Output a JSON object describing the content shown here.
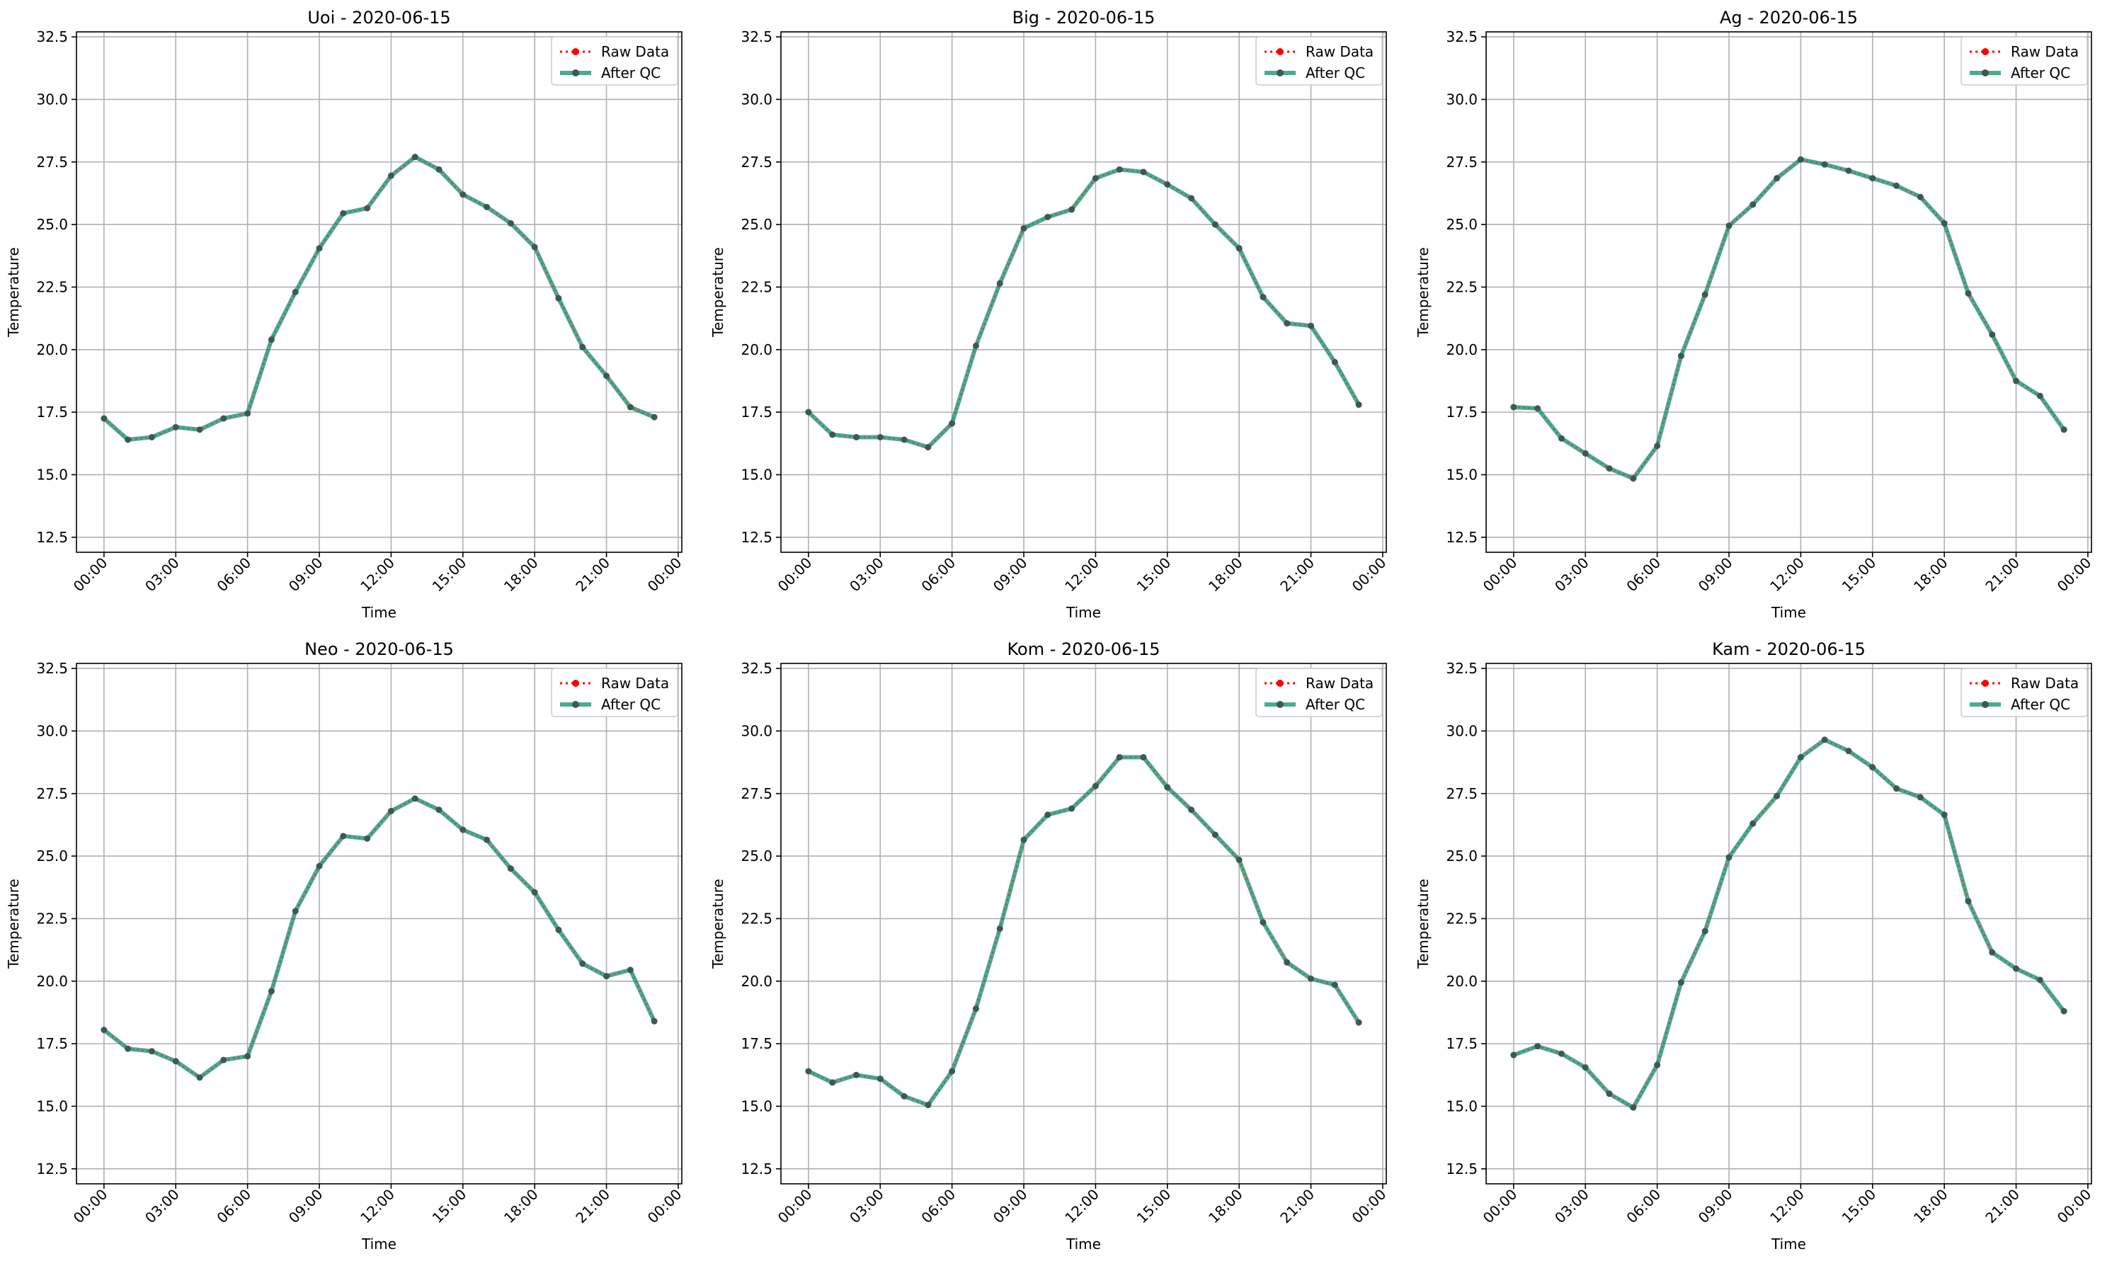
{
  "figure": {
    "legend": {
      "raw_label": "Raw Data",
      "qc_label": "After QC"
    },
    "colors": {
      "raw": "#ff0000",
      "qc": "#2a9d78",
      "grid": "#b0b0b0",
      "marker": "#3d5a50"
    }
  },
  "chart_data": [
    {
      "type": "line",
      "title": "Uoi - 2020-06-15",
      "xlabel": "Time",
      "ylabel": "Temperature",
      "x_ticks": [
        "00:00",
        "03:00",
        "06:00",
        "09:00",
        "12:00",
        "15:00",
        "18:00",
        "21:00",
        "00:00"
      ],
      "y_ticks": [
        "12.5",
        "15.0",
        "17.5",
        "20.0",
        "22.5",
        "25.0",
        "27.5",
        "30.0",
        "32.5"
      ],
      "ylim": [
        11.9,
        32.7
      ],
      "xlim_hours": [
        -1.15,
        24.15
      ],
      "grid": true,
      "legend_position": "top-right",
      "x_hours": [
        0,
        1,
        2,
        3,
        4,
        5,
        6,
        7,
        8,
        9,
        10,
        11,
        12,
        13,
        14,
        15,
        16,
        17,
        18,
        19,
        20,
        21,
        22,
        23
      ],
      "series": [
        {
          "name": "Raw Data",
          "values": [
            17.25,
            16.4,
            16.5,
            16.9,
            16.8,
            17.25,
            17.45,
            20.4,
            22.3,
            24.05,
            25.45,
            25.65,
            26.95,
            27.7,
            27.2,
            26.2,
            25.7,
            25.05,
            24.1,
            22.05,
            20.1,
            18.95,
            17.7,
            17.3
          ]
        },
        {
          "name": "After QC",
          "values": [
            17.25,
            16.4,
            16.5,
            16.9,
            16.8,
            17.25,
            17.45,
            20.4,
            22.3,
            24.05,
            25.45,
            25.65,
            26.95,
            27.7,
            27.2,
            26.2,
            25.7,
            25.05,
            24.1,
            22.05,
            20.1,
            18.95,
            17.7,
            17.3
          ]
        }
      ]
    },
    {
      "type": "line",
      "title": "Big - 2020-06-15",
      "xlabel": "Time",
      "ylabel": "Temperature",
      "x_ticks": [
        "00:00",
        "03:00",
        "06:00",
        "09:00",
        "12:00",
        "15:00",
        "18:00",
        "21:00",
        "00:00"
      ],
      "y_ticks": [
        "12.5",
        "15.0",
        "17.5",
        "20.0",
        "22.5",
        "25.0",
        "27.5",
        "30.0",
        "32.5"
      ],
      "ylim": [
        11.9,
        32.7
      ],
      "xlim_hours": [
        -1.15,
        24.15
      ],
      "grid": true,
      "legend_position": "top-right",
      "x_hours": [
        0,
        1,
        2,
        3,
        4,
        5,
        6,
        7,
        8,
        9,
        10,
        11,
        12,
        13,
        14,
        15,
        16,
        17,
        18,
        19,
        20,
        21,
        22,
        23
      ],
      "series": [
        {
          "name": "Raw Data",
          "values": [
            17.5,
            16.6,
            16.5,
            16.5,
            16.4,
            16.1,
            17.05,
            20.15,
            22.65,
            24.85,
            25.3,
            25.6,
            26.85,
            27.2,
            27.1,
            26.6,
            26.05,
            25.0,
            24.05,
            22.1,
            21.05,
            20.95,
            19.5,
            17.8
          ]
        },
        {
          "name": "After QC",
          "values": [
            17.5,
            16.6,
            16.5,
            16.5,
            16.4,
            16.1,
            17.05,
            20.15,
            22.65,
            24.85,
            25.3,
            25.6,
            26.85,
            27.2,
            27.1,
            26.6,
            26.05,
            25.0,
            24.05,
            22.1,
            21.05,
            20.95,
            19.5,
            17.8
          ]
        }
      ]
    },
    {
      "type": "line",
      "title": "Ag - 2020-06-15",
      "xlabel": "Time",
      "ylabel": "Temperature",
      "x_ticks": [
        "00:00",
        "03:00",
        "06:00",
        "09:00",
        "12:00",
        "15:00",
        "18:00",
        "21:00",
        "00:00"
      ],
      "y_ticks": [
        "12.5",
        "15.0",
        "17.5",
        "20.0",
        "22.5",
        "25.0",
        "27.5",
        "30.0",
        "32.5"
      ],
      "ylim": [
        11.9,
        32.7
      ],
      "xlim_hours": [
        -1.15,
        24.15
      ],
      "grid": true,
      "legend_position": "top-right",
      "x_hours": [
        0,
        1,
        2,
        3,
        4,
        5,
        6,
        7,
        8,
        9,
        10,
        11,
        12,
        13,
        14,
        15,
        16,
        17,
        18,
        19,
        20,
        21,
        22,
        23
      ],
      "series": [
        {
          "name": "Raw Data",
          "values": [
            17.7,
            17.65,
            16.45,
            15.85,
            15.25,
            14.85,
            16.15,
            19.75,
            22.2,
            24.95,
            25.8,
            26.85,
            27.6,
            27.4,
            27.15,
            26.85,
            26.55,
            26.1,
            25.05,
            22.25,
            20.6,
            18.75,
            18.15,
            16.8
          ]
        },
        {
          "name": "After QC",
          "values": [
            17.7,
            17.65,
            16.45,
            15.85,
            15.25,
            14.85,
            16.15,
            19.75,
            22.2,
            24.95,
            25.8,
            26.85,
            27.6,
            27.4,
            27.15,
            26.85,
            26.55,
            26.1,
            25.05,
            22.25,
            20.6,
            18.75,
            18.15,
            16.8
          ]
        }
      ]
    },
    {
      "type": "line",
      "title": "Neo - 2020-06-15",
      "xlabel": "Time",
      "ylabel": "Temperature",
      "x_ticks": [
        "00:00",
        "03:00",
        "06:00",
        "09:00",
        "12:00",
        "15:00",
        "18:00",
        "21:00",
        "00:00"
      ],
      "y_ticks": [
        "12.5",
        "15.0",
        "17.5",
        "20.0",
        "22.5",
        "25.0",
        "27.5",
        "30.0",
        "32.5"
      ],
      "ylim": [
        11.9,
        32.7
      ],
      "xlim_hours": [
        -1.15,
        24.15
      ],
      "grid": true,
      "legend_position": "top-right",
      "x_hours": [
        0,
        1,
        2,
        3,
        4,
        5,
        6,
        7,
        8,
        9,
        10,
        11,
        12,
        13,
        14,
        15,
        16,
        17,
        18,
        19,
        20,
        21,
        22,
        23
      ],
      "series": [
        {
          "name": "Raw Data",
          "values": [
            18.05,
            17.3,
            17.2,
            16.8,
            16.15,
            16.85,
            17.0,
            19.6,
            22.8,
            24.6,
            25.8,
            25.7,
            26.8,
            27.3,
            26.85,
            26.05,
            25.65,
            24.5,
            23.55,
            22.05,
            20.7,
            20.2,
            20.45,
            18.4
          ]
        },
        {
          "name": "After QC",
          "values": [
            18.05,
            17.3,
            17.2,
            16.8,
            16.15,
            16.85,
            17.0,
            19.6,
            22.8,
            24.6,
            25.8,
            25.7,
            26.8,
            27.3,
            26.85,
            26.05,
            25.65,
            24.5,
            23.55,
            22.05,
            20.7,
            20.2,
            20.45,
            18.4
          ]
        }
      ]
    },
    {
      "type": "line",
      "title": "Kom - 2020-06-15",
      "xlabel": "Time",
      "ylabel": "Temperature",
      "x_ticks": [
        "00:00",
        "03:00",
        "06:00",
        "09:00",
        "12:00",
        "15:00",
        "18:00",
        "21:00",
        "00:00"
      ],
      "y_ticks": [
        "12.5",
        "15.0",
        "17.5",
        "20.0",
        "22.5",
        "25.0",
        "27.5",
        "30.0",
        "32.5"
      ],
      "ylim": [
        11.9,
        32.7
      ],
      "xlim_hours": [
        -1.15,
        24.15
      ],
      "grid": true,
      "legend_position": "top-right",
      "x_hours": [
        0,
        1,
        2,
        3,
        4,
        5,
        6,
        7,
        8,
        9,
        10,
        11,
        12,
        13,
        14,
        15,
        16,
        17,
        18,
        19,
        20,
        21,
        22,
        23
      ],
      "series": [
        {
          "name": "Raw Data",
          "values": [
            16.4,
            15.95,
            16.25,
            16.1,
            15.4,
            15.05,
            16.4,
            18.9,
            22.1,
            25.65,
            26.65,
            26.9,
            27.8,
            28.95,
            28.95,
            27.75,
            26.85,
            25.85,
            24.85,
            22.35,
            20.75,
            20.1,
            19.85,
            18.35
          ]
        },
        {
          "name": "After QC",
          "values": [
            16.4,
            15.95,
            16.25,
            16.1,
            15.4,
            15.05,
            16.4,
            18.9,
            22.1,
            25.65,
            26.65,
            26.9,
            27.8,
            28.95,
            28.95,
            27.75,
            26.85,
            25.85,
            24.85,
            22.35,
            20.75,
            20.1,
            19.85,
            18.35
          ]
        }
      ]
    },
    {
      "type": "line",
      "title": "Kam - 2020-06-15",
      "xlabel": "Time",
      "ylabel": "Temperature",
      "x_ticks": [
        "00:00",
        "03:00",
        "06:00",
        "09:00",
        "12:00",
        "15:00",
        "18:00",
        "21:00",
        "00:00"
      ],
      "y_ticks": [
        "12.5",
        "15.0",
        "17.5",
        "20.0",
        "22.5",
        "25.0",
        "27.5",
        "30.0",
        "32.5"
      ],
      "ylim": [
        11.9,
        32.7
      ],
      "xlim_hours": [
        -1.15,
        24.15
      ],
      "grid": true,
      "legend_position": "top-right",
      "x_hours": [
        0,
        1,
        2,
        3,
        4,
        5,
        6,
        7,
        8,
        9,
        10,
        11,
        12,
        13,
        14,
        15,
        16,
        17,
        18,
        19,
        20,
        21,
        22,
        23
      ],
      "series": [
        {
          "name": "Raw Data",
          "values": [
            17.05,
            17.4,
            17.1,
            16.55,
            15.5,
            14.95,
            16.65,
            19.95,
            22.0,
            24.95,
            26.3,
            27.4,
            28.95,
            29.65,
            29.2,
            28.55,
            27.7,
            27.35,
            26.65,
            23.2,
            21.15,
            20.5,
            20.05,
            18.8
          ]
        },
        {
          "name": "After QC",
          "values": [
            17.05,
            17.4,
            17.1,
            16.55,
            15.5,
            14.95,
            16.65,
            19.95,
            22.0,
            24.95,
            26.3,
            27.4,
            28.95,
            29.65,
            29.2,
            28.55,
            27.7,
            27.35,
            26.65,
            23.2,
            21.15,
            20.5,
            20.05,
            18.8
          ]
        }
      ]
    }
  ]
}
